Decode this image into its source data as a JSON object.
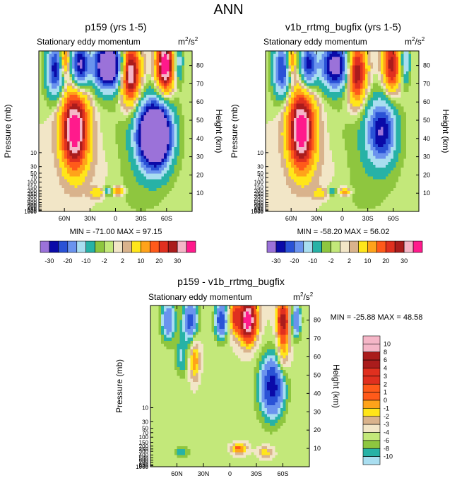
{
  "figure": {
    "title": "ANN"
  },
  "palettes": {
    "main": [
      "#9b72d9",
      "#0a0aa8",
      "#2a52d6",
      "#6a93ee",
      "#a9def0",
      "#27b2a6",
      "#8ec63f",
      "#c3e87a",
      "#f2e6c7",
      "#d9b38c",
      "#ffe61a",
      "#ffa31a",
      "#ff5a1a",
      "#e0301f",
      "#aa1c1c",
      "#f5b6c7",
      "#ff1a8c"
    ],
    "diff": [
      "#9b72d9",
      "#0a0aa8",
      "#2a52d6",
      "#6a93ee",
      "#a9def0",
      "#27b2a6",
      "#8ec63f",
      "#c3e87a",
      "#f2e6c7",
      "#d9b38c",
      "#ffe61a",
      "#ffa31a",
      "#ff5a1a",
      "#e0301f",
      "#aa1c1c",
      "#f5b6c7",
      "#ff1a8c"
    ]
  },
  "chart_data": [
    {
      "type": "heatmap",
      "title": "p159 (yrs 1-5)",
      "left_string": "Stationary eddy momentum",
      "units": {
        "base": "m",
        "sup1": "2",
        "mid": "/s",
        "sup2": "2"
      },
      "ylabel": "Pressure (mb)",
      "y2label": "Height (km)",
      "x_ticks": [
        "60N",
        "30N",
        "0",
        "30S",
        "60S"
      ],
      "x_tick_lats": [
        60,
        30,
        0,
        -30,
        -60
      ],
      "xlim": [
        90,
        -90
      ],
      "p_ticks": [
        "10",
        "30",
        "50",
        "70",
        "100",
        "150",
        "200",
        "250",
        "300",
        "400",
        "500",
        "600",
        "700",
        "850",
        "925",
        "1000"
      ],
      "p_tick_values": [
        10,
        30,
        50,
        70,
        100,
        150,
        200,
        250,
        300,
        400,
        500,
        600,
        700,
        850,
        925,
        1000
      ],
      "h_ticks": [
        "10",
        "20",
        "30",
        "40",
        "50",
        "60",
        "70",
        "80"
      ],
      "h_tick_values": [
        10,
        20,
        30,
        40,
        50,
        60,
        70,
        80
      ],
      "ylim_km": [
        0,
        88
      ],
      "stats": {
        "min_label": "MIN",
        "min": "-71.00",
        "max_label": "MAX",
        "max": "97.15"
      },
      "colorbar_labels": [
        "-30",
        "-20",
        "-10",
        "-2",
        "2",
        "10",
        "20",
        "30"
      ],
      "field": [
        {
          "lat": 48,
          "km": 45,
          "amp": 42,
          "slat": 11,
          "skm": 15
        },
        {
          "lat": -46,
          "km": 42,
          "amp": -62,
          "slat": 13,
          "skm": 12
        },
        {
          "lat": -3,
          "km": 11,
          "amp": 18,
          "slat": 4,
          "skm": 1.5
        },
        {
          "lat": 8,
          "km": 11,
          "amp": -14,
          "slat": 3,
          "skm": 1.5
        },
        {
          "lat": 22,
          "km": 10,
          "amp": 9,
          "slat": 6,
          "skm": 2
        },
        {
          "lat": -17,
          "km": 76,
          "amp": 40,
          "slat": 8,
          "skm": 11
        },
        {
          "lat": 8,
          "km": 80,
          "amp": -45,
          "slat": 13,
          "skm": 9
        },
        {
          "lat": 42,
          "km": 80,
          "amp": -32,
          "slat": 7,
          "skm": 9
        },
        {
          "lat": 70,
          "km": 78,
          "amp": -28,
          "slat": 8,
          "skm": 11
        },
        {
          "lat": 60,
          "km": 83,
          "amp": 26,
          "slat": 4,
          "skm": 6
        },
        {
          "lat": -58,
          "km": 80,
          "amp": 42,
          "slat": 7,
          "skm": 10
        },
        {
          "lat": -74,
          "km": 82,
          "amp": -14,
          "slat": 4,
          "skm": 8
        },
        {
          "lat": -25,
          "km": 30,
          "amp": -4,
          "slat": 30,
          "skm": 25
        },
        {
          "lat": 15,
          "km": 25,
          "amp": 2,
          "slat": 25,
          "skm": 12
        }
      ]
    },
    {
      "type": "heatmap",
      "title": "v1b_rrtmg_bugfix (yrs 1-5)",
      "left_string": "Stationary eddy momentum",
      "units": {
        "base": "m",
        "sup1": "2",
        "mid": "/s",
        "sup2": "2"
      },
      "ylabel": "Pressure (mb)",
      "y2label": "Height (km)",
      "x_ticks": [
        "60N",
        "30N",
        "0",
        "30S",
        "60S"
      ],
      "x_tick_lats": [
        60,
        30,
        0,
        -30,
        -60
      ],
      "xlim": [
        90,
        -90
      ],
      "p_ticks": [
        "10",
        "30",
        "50",
        "70",
        "100",
        "150",
        "200",
        "250",
        "300",
        "400",
        "500",
        "600",
        "700",
        "850",
        "925",
        "1000"
      ],
      "p_tick_values": [
        10,
        30,
        50,
        70,
        100,
        150,
        200,
        250,
        300,
        400,
        500,
        600,
        700,
        850,
        925,
        1000
      ],
      "h_ticks": [
        "10",
        "20",
        "30",
        "40",
        "50",
        "60",
        "70",
        "80"
      ],
      "h_tick_values": [
        10,
        20,
        30,
        40,
        50,
        60,
        70,
        80
      ],
      "ylim_km": [
        0,
        88
      ],
      "stats": {
        "min_label": "MIN",
        "min": "-58.20",
        "max_label": "MAX",
        "max": "56.02"
      },
      "colorbar_labels": [
        "-30",
        "-20",
        "-10",
        "-2",
        "2",
        "10",
        "20",
        "30"
      ],
      "field": [
        {
          "lat": 48,
          "km": 45,
          "amp": 42,
          "slat": 11,
          "skm": 15
        },
        {
          "lat": -46,
          "km": 44,
          "amp": -28,
          "slat": 12,
          "skm": 12
        },
        {
          "lat": -3,
          "km": 11,
          "amp": 14,
          "slat": 4,
          "skm": 1.5
        },
        {
          "lat": 12,
          "km": 11,
          "amp": -8,
          "slat": 3,
          "skm": 1.5
        },
        {
          "lat": 26,
          "km": 10,
          "amp": 8,
          "slat": 6,
          "skm": 2
        },
        {
          "lat": -17,
          "km": 76,
          "amp": 32,
          "slat": 8,
          "skm": 11
        },
        {
          "lat": 8,
          "km": 80,
          "amp": -36,
          "slat": 12,
          "skm": 9
        },
        {
          "lat": 40,
          "km": 80,
          "amp": -28,
          "slat": 7,
          "skm": 9
        },
        {
          "lat": 70,
          "km": 78,
          "amp": -26,
          "slat": 8,
          "skm": 11
        },
        {
          "lat": 60,
          "km": 83,
          "amp": 22,
          "slat": 4,
          "skm": 6
        },
        {
          "lat": -58,
          "km": 80,
          "amp": 28,
          "slat": 7,
          "skm": 10
        },
        {
          "lat": -74,
          "km": 82,
          "amp": -16,
          "slat": 4,
          "skm": 8
        },
        {
          "lat": -25,
          "km": 30,
          "amp": -4,
          "slat": 30,
          "skm": 25
        },
        {
          "lat": 15,
          "km": 25,
          "amp": 2,
          "slat": 25,
          "skm": 12
        }
      ]
    },
    {
      "type": "heatmap",
      "title": "p159 - v1b_rrtmg_bugfix",
      "left_string": "Stationary eddy momentum",
      "units": {
        "base": "m",
        "sup1": "2",
        "mid": "/s",
        "sup2": "2"
      },
      "ylabel": "Pressure (mb)",
      "y2label": "Height (km)",
      "x_ticks": [
        "60N",
        "30N",
        "0",
        "30S",
        "60S"
      ],
      "x_tick_lats": [
        60,
        30,
        0,
        -30,
        -60
      ],
      "xlim": [
        90,
        -90
      ],
      "p_ticks": [
        "10",
        "30",
        "50",
        "70",
        "100",
        "150",
        "200",
        "250",
        "300",
        "400",
        "500",
        "600",
        "700",
        "850",
        "925",
        "1000"
      ],
      "p_tick_values": [
        10,
        30,
        50,
        70,
        100,
        150,
        200,
        250,
        300,
        400,
        500,
        600,
        700,
        850,
        925,
        1000
      ],
      "h_ticks": [
        "10",
        "20",
        "30",
        "40",
        "50",
        "60",
        "70",
        "80"
      ],
      "h_tick_values": [
        10,
        20,
        30,
        40,
        50,
        60,
        70,
        80
      ],
      "ylim_km": [
        0,
        88
      ],
      "stats": {
        "min_label": "MIN",
        "min": "-25.88",
        "max_label": "MAX",
        "max": "48.58"
      },
      "colorbar_labels": [
        "10",
        "8",
        "6",
        "4",
        "3",
        "2",
        "1",
        "0",
        "-1",
        "-2",
        "-3",
        "-4",
        "-6",
        "-8",
        "-10"
      ],
      "field": [
        {
          "lat": -48,
          "km": 44,
          "amp": -9,
          "slat": 10,
          "skm": 12
        },
        {
          "lat": 40,
          "km": 58,
          "amp": 4,
          "slat": 4,
          "skm": 8
        },
        {
          "lat": 55,
          "km": 60,
          "amp": -3,
          "slat": 5,
          "skm": 8
        },
        {
          "lat": -10,
          "km": 10,
          "amp": 5,
          "slat": 6,
          "skm": 2
        },
        {
          "lat": 55,
          "km": 8,
          "amp": -3,
          "slat": 6,
          "skm": 2
        },
        {
          "lat": -40,
          "km": 8,
          "amp": 3,
          "slat": 5,
          "skm": 2
        },
        {
          "lat": -20,
          "km": 80,
          "amp": 14,
          "slat": 7,
          "skm": 8
        },
        {
          "lat": -5,
          "km": 82,
          "amp": 6,
          "slat": 4,
          "skm": 6
        },
        {
          "lat": 10,
          "km": 80,
          "amp": -8,
          "slat": 5,
          "skm": 7
        },
        {
          "lat": 45,
          "km": 80,
          "amp": -7,
          "slat": 6,
          "skm": 8
        },
        {
          "lat": 70,
          "km": 80,
          "amp": -6,
          "slat": 6,
          "skm": 8
        },
        {
          "lat": -60,
          "km": 80,
          "amp": 9,
          "slat": 5,
          "skm": 7
        },
        {
          "lat": -75,
          "km": 80,
          "amp": -6,
          "slat": 4,
          "skm": 7
        },
        {
          "lat": -60,
          "km": 62,
          "amp": 4,
          "slat": 5,
          "skm": 8
        },
        {
          "lat": 10,
          "km": 30,
          "amp": -0.6,
          "slat": 30,
          "skm": 20
        }
      ]
    }
  ]
}
